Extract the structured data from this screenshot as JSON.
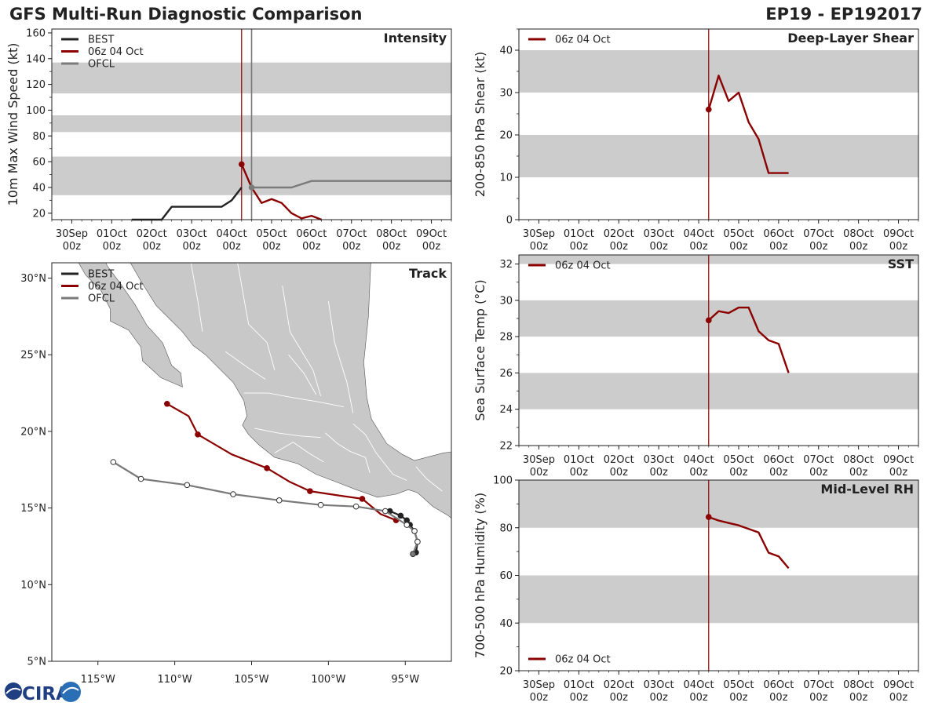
{
  "header": {
    "title": "GFS Multi-Run Diagnostic Comparison",
    "storm_id": "EP19 - EP192017"
  },
  "logo": {
    "text": "CIRA"
  },
  "colors": {
    "best": "#222222",
    "run": "#8b0000",
    "ofcl": "#7a7a7a",
    "band": "#cccccc",
    "land": "#c8c8c8",
    "ocean": "#ffffff",
    "vline_run": "#8b0000",
    "vline_ofcl": "#777777"
  },
  "time_axis": {
    "min": -0.5,
    "max": 9.5,
    "ticks": [
      0,
      1,
      2,
      3,
      4,
      5,
      6,
      7,
      8,
      9
    ],
    "tick_labels_top": [
      "30Sep",
      "01Oct",
      "02Oct",
      "03Oct",
      "04Oct",
      "05Oct",
      "06Oct",
      "07Oct",
      "08Oct",
      "09Oct"
    ],
    "tick_labels_bottom": [
      "00z",
      "00z",
      "00z",
      "00z",
      "00z",
      "00z",
      "00z",
      "00z",
      "00z",
      "00z"
    ],
    "run_time": 4.25,
    "ofcl_time": 4.5
  },
  "chart_data": [
    {
      "id": "intensity",
      "type": "line",
      "title": "Intensity",
      "ylabel": "10m Max Wind Speed (kt)",
      "ylim": [
        15,
        163
      ],
      "yticks": [
        20,
        40,
        60,
        80,
        100,
        120,
        140,
        160
      ],
      "bands": [
        [
          34,
          64
        ],
        [
          83,
          96
        ],
        [
          113,
          137
        ]
      ],
      "legend": [
        "BEST",
        "06z 04 Oct",
        "OFCL"
      ],
      "series": [
        {
          "name": "BEST",
          "x": [
            1.5,
            2.25,
            2.5,
            2.75,
            3.0,
            3.25,
            3.5,
            3.75,
            4.0,
            4.25
          ],
          "y": [
            15,
            15,
            25,
            25,
            25,
            25,
            25,
            25,
            30,
            40
          ]
        },
        {
          "name": "06z 04 Oct",
          "x": [
            4.25,
            4.5,
            4.75,
            5.0,
            5.25,
            5.5,
            5.75,
            6.0,
            6.25
          ],
          "y": [
            58,
            40,
            28,
            31,
            28,
            20,
            16,
            18,
            15
          ]
        },
        {
          "name": "OFCL",
          "x": [
            4.5,
            5.0,
            5.5,
            6.0,
            7.0,
            8.0,
            9.5
          ],
          "y": [
            40,
            40,
            40,
            45,
            45,
            45,
            45
          ]
        }
      ]
    },
    {
      "id": "shear",
      "type": "line",
      "title": "Deep-Layer Shear",
      "ylabel": "200-850 hPa Shear (kt)",
      "ylim": [
        0,
        45
      ],
      "yticks": [
        0,
        10,
        20,
        30,
        40
      ],
      "bands": [
        [
          10,
          20
        ],
        [
          30,
          40
        ]
      ],
      "legend": [
        "06z 04 Oct"
      ],
      "series": [
        {
          "name": "06z 04 Oct",
          "x": [
            4.25,
            4.5,
            4.75,
            5.0,
            5.25,
            5.5,
            5.75,
            6.0,
            6.25
          ],
          "y": [
            26,
            34,
            28,
            30,
            23,
            19,
            11,
            11,
            11
          ]
        }
      ]
    },
    {
      "id": "sst",
      "type": "line",
      "title": "SST",
      "ylabel": "Sea Surface Temp (°C)",
      "ylim": [
        22,
        32.5
      ],
      "yticks": [
        22,
        24,
        26,
        28,
        30,
        32
      ],
      "bands": [
        [
          24,
          26
        ],
        [
          28,
          30
        ],
        [
          32,
          32.5
        ]
      ],
      "legend": [
        "06z 04 Oct"
      ],
      "series": [
        {
          "name": "06z 04 Oct",
          "x": [
            4.25,
            4.5,
            4.75,
            5.0,
            5.25,
            5.5,
            5.75,
            6.0,
            6.25
          ],
          "y": [
            28.9,
            29.4,
            29.3,
            29.6,
            29.6,
            28.3,
            27.8,
            27.6,
            26.0
          ]
        }
      ]
    },
    {
      "id": "rh",
      "type": "line",
      "title": "Mid-Level RH",
      "ylabel": "700-500 hPa Humidity (%)",
      "ylim": [
        20,
        100
      ],
      "yticks": [
        20,
        40,
        60,
        80,
        100
      ],
      "bands": [
        [
          40,
          60
        ],
        [
          80,
          100
        ]
      ],
      "legend": [
        "06z 04 Oct"
      ],
      "series": [
        {
          "name": "06z 04 Oct",
          "x": [
            4.25,
            4.5,
            4.75,
            5.0,
            5.25,
            5.5,
            5.75,
            6.0,
            6.25
          ],
          "y": [
            84.5,
            83,
            82,
            81,
            79.5,
            78,
            69.5,
            68,
            63
          ]
        }
      ]
    },
    {
      "id": "track",
      "type": "scatter",
      "title": "Track",
      "xlim": [
        -118,
        -92
      ],
      "ylim": [
        5,
        31
      ],
      "xticks": [
        -115,
        -110,
        -105,
        -100,
        -95
      ],
      "xtick_labels": [
        "115°W",
        "110°W",
        "105°W",
        "100°W",
        "95°W"
      ],
      "yticks": [
        5,
        10,
        15,
        20,
        25,
        30
      ],
      "ytick_labels": [
        "5°N",
        "10°N",
        "15°N",
        "20°N",
        "25°N",
        "30°N"
      ],
      "legend": [
        "BEST",
        "06z 04 Oct",
        "OFCL"
      ],
      "series": [
        {
          "name": "BEST",
          "lon": [
            -94.5,
            -94.3,
            -94.2,
            -94.4,
            -94.7,
            -94.9,
            -95.3,
            -96.0
          ],
          "lat": [
            12.0,
            12.1,
            12.8,
            13.5,
            13.9,
            14.2,
            14.5,
            14.8
          ]
        },
        {
          "name": "06z 04 Oct",
          "lon": [
            -95.6,
            -96.6,
            -97.8,
            -99.2,
            -101.2,
            -102.5,
            -104.0,
            -106.3,
            -108.5,
            -109.1,
            -110.5
          ],
          "lat": [
            14.2,
            14.6,
            15.6,
            15.8,
            16.1,
            16.7,
            17.6,
            18.5,
            19.8,
            21.0,
            21.8
          ]
        },
        {
          "name": "OFCL",
          "lon": [
            -94.5,
            -94.2,
            -94.4,
            -94.9,
            -96.3,
            -98.2,
            -100.5,
            -103.2,
            -106.2,
            -109.2,
            -112.2,
            -114.0
          ],
          "lat": [
            12.0,
            12.8,
            13.5,
            13.9,
            14.8,
            15.1,
            15.2,
            15.5,
            15.9,
            16.5,
            16.9,
            18.0
          ]
        }
      ]
    }
  ]
}
